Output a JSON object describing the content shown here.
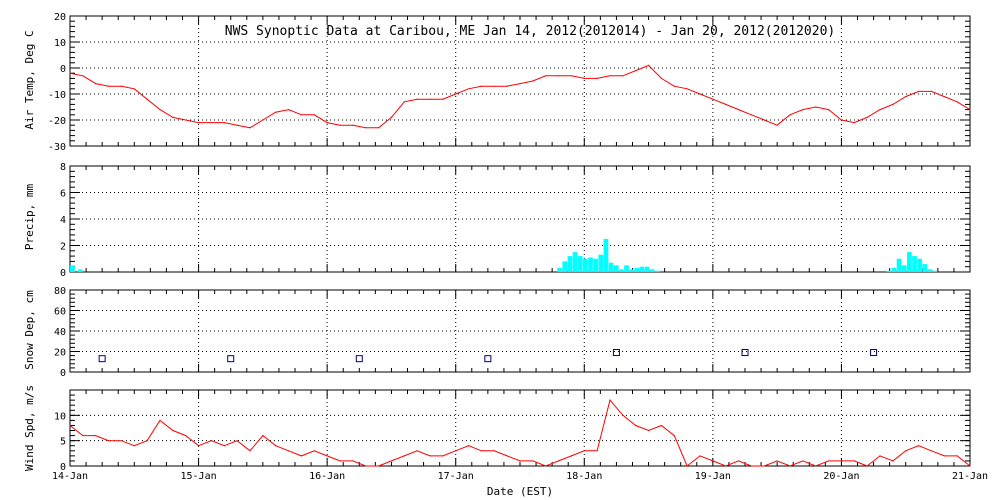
{
  "colors": {
    "temp": "#ff0000",
    "precip": "#00ffff",
    "snow": "#000080",
    "wind": "#ff0000",
    "grid": "#000000",
    "frame": "#000000"
  },
  "chart_data": [
    {
      "type": "line",
      "title": "NWS Synoptic Data at Caribou, ME   Jan 14, 2012(2012014) - Jan 20, 2012(2012020)",
      "ylabel": "Air Temp, Deg C",
      "ylim": [
        -30,
        20
      ],
      "yticks": [
        -30,
        -20,
        -10,
        0,
        10,
        20
      ],
      "xlim_days": [
        0,
        7
      ],
      "grid": true,
      "series": [
        {
          "x": [
            0,
            0.1,
            0.2,
            0.3,
            0.4,
            0.5,
            0.6,
            0.7,
            0.8,
            0.9,
            1.0,
            1.1,
            1.2,
            1.3,
            1.4,
            1.5,
            1.6,
            1.7,
            1.8,
            1.9,
            2.0,
            2.1,
            2.2,
            2.3,
            2.4,
            2.5,
            2.6,
            2.7,
            2.8,
            2.9,
            3.0,
            3.1,
            3.2,
            3.3,
            3.4,
            3.5,
            3.6,
            3.7,
            3.8,
            3.9,
            4.0,
            4.1,
            4.2,
            4.3,
            4.4,
            4.5,
            4.6,
            4.7,
            4.8,
            4.9,
            5.0,
            5.1,
            5.2,
            5.3,
            5.4,
            5.5,
            5.6,
            5.7,
            5.8,
            5.9,
            6.0,
            6.1,
            6.2,
            6.3,
            6.4,
            6.5,
            6.6,
            6.7,
            6.8,
            6.9,
            7.0
          ],
          "values": [
            -2,
            -3,
            -6,
            -7,
            -7,
            -8,
            -12,
            -16,
            -19,
            -20,
            -21,
            -21,
            -21,
            -22,
            -23,
            -20,
            -17,
            -16,
            -18,
            -18,
            -21,
            -22,
            -22,
            -23,
            -23,
            -19,
            -13,
            -12,
            -12,
            -12,
            -10,
            -8,
            -7,
            -7,
            -7,
            -6,
            -5,
            -3,
            -3,
            -3,
            -4,
            -4,
            -3,
            -3,
            -1,
            1,
            -4,
            -7,
            -8,
            -10,
            -12,
            -14,
            -16,
            -18,
            -20,
            -22,
            -18,
            -16,
            -15,
            -16,
            -20,
            -21,
            -19,
            -16,
            -14,
            -11,
            -9,
            -9,
            -11,
            -13,
            -16
          ]
        }
      ]
    },
    {
      "type": "bar",
      "ylabel": "Precip, mm",
      "ylim": [
        0,
        8
      ],
      "yticks": [
        0,
        2,
        4,
        6,
        8
      ],
      "xlim_days": [
        0,
        7
      ],
      "grid": true,
      "series": [
        {
          "x": [
            0.0,
            0.06,
            3.79,
            3.83,
            3.87,
            3.91,
            3.95,
            3.99,
            4.03,
            4.07,
            4.11,
            4.15,
            4.19,
            4.23,
            4.27,
            4.31,
            4.35,
            4.39,
            4.43,
            4.47,
            4.51,
            4.55,
            6.35,
            6.39,
            6.43,
            6.47,
            6.51,
            6.55,
            6.59,
            6.63,
            6.67,
            6.71
          ],
          "values": [
            0.5,
            0.2,
            0.3,
            0.8,
            1.2,
            1.5,
            1.2,
            1.0,
            1.1,
            1.0,
            1.3,
            2.5,
            0.7,
            0.5,
            0.2,
            0.5,
            0.2,
            0.3,
            0.4,
            0.4,
            0.2,
            0.1,
            0.1,
            0.3,
            1.0,
            0.5,
            1.5,
            1.2,
            1.0,
            0.6,
            0.2,
            0.1
          ]
        }
      ]
    },
    {
      "type": "scatter",
      "ylabel": "Snow Dep, cm",
      "ylim": [
        0,
        80
      ],
      "yticks": [
        0,
        20,
        40,
        60,
        80
      ],
      "xlim_days": [
        0,
        7
      ],
      "grid": true,
      "series": [
        {
          "x": [
            0.25,
            1.25,
            2.25,
            3.25,
            4.25,
            5.25,
            6.25
          ],
          "values": [
            13,
            13,
            13,
            13,
            19,
            19,
            19
          ]
        }
      ]
    },
    {
      "type": "line",
      "ylabel": "Wind Spd, m/s",
      "xlabel": "Date (EST)",
      "ylim": [
        0,
        15
      ],
      "yticks": [
        0,
        5,
        10
      ],
      "xlim_days": [
        0,
        7
      ],
      "xticklabels": [
        "14-Jan",
        "15-Jan",
        "16-Jan",
        "17-Jan",
        "18-Jan",
        "19-Jan",
        "20-Jan",
        "21-Jan"
      ],
      "grid": true,
      "series": [
        {
          "x": [
            0,
            0.1,
            0.2,
            0.3,
            0.4,
            0.5,
            0.6,
            0.7,
            0.8,
            0.9,
            1.0,
            1.1,
            1.2,
            1.3,
            1.4,
            1.5,
            1.6,
            1.7,
            1.8,
            1.9,
            2.0,
            2.1,
            2.2,
            2.3,
            2.4,
            2.5,
            2.6,
            2.7,
            2.8,
            2.9,
            3.0,
            3.1,
            3.2,
            3.3,
            3.4,
            3.5,
            3.6,
            3.7,
            3.8,
            3.9,
            4.0,
            4.1,
            4.2,
            4.3,
            4.4,
            4.5,
            4.6,
            4.7,
            4.8,
            4.9,
            5.0,
            5.1,
            5.2,
            5.3,
            5.4,
            5.5,
            5.6,
            5.7,
            5.8,
            5.9,
            6.0,
            6.1,
            6.2,
            6.3,
            6.4,
            6.5,
            6.6,
            6.7,
            6.8,
            6.9,
            7.0
          ],
          "values": [
            8,
            6,
            6,
            5,
            5,
            4,
            5,
            9,
            7,
            6,
            4,
            5,
            4,
            5,
            3,
            6,
            4,
            3,
            2,
            3,
            2,
            1,
            1,
            0,
            0,
            1,
            2,
            3,
            2,
            2,
            3,
            4,
            3,
            3,
            2,
            1,
            1,
            0,
            1,
            2,
            3,
            3,
            13,
            10,
            8,
            7,
            8,
            6,
            0,
            2,
            1,
            0,
            1,
            0,
            0,
            1,
            0,
            1,
            0,
            1,
            1,
            1,
            0,
            2,
            1,
            3,
            4,
            3,
            2,
            2,
            0
          ]
        }
      ]
    }
  ]
}
